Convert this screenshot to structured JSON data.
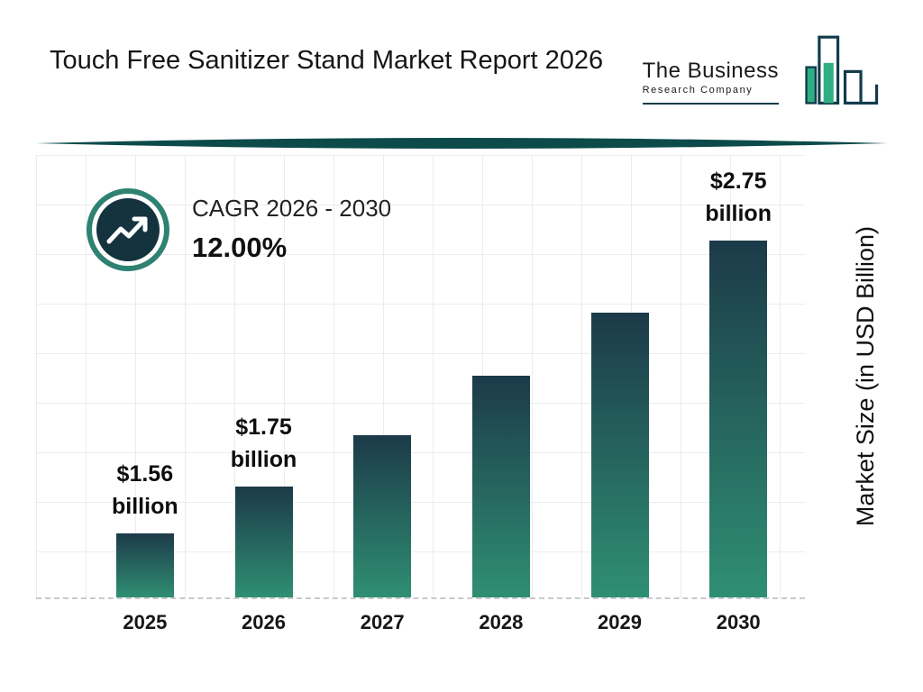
{
  "header": {
    "title": "Touch Free Sanitizer Stand Market Report 2026",
    "logo": {
      "line1": "The Business",
      "line2": "Research Company"
    }
  },
  "cagr": {
    "label": "CAGR 2026 - 2030",
    "value": "12.00%"
  },
  "chart_data": {
    "type": "bar",
    "title": "Touch Free Sanitizer Stand Market Report 2026",
    "categories": [
      "2025",
      "2026",
      "2027",
      "2028",
      "2029",
      "2030"
    ],
    "values": [
      1.56,
      1.75,
      1.96,
      2.2,
      2.46,
      2.75
    ],
    "annotations": [
      {
        "line1": "$1.56",
        "line2": "billion"
      },
      {
        "line1": "$1.75",
        "line2": "billion"
      },
      null,
      null,
      null,
      {
        "line1": "$2.75",
        "line2": "billion"
      }
    ],
    "xlabel": "",
    "ylabel": "Market Size (in USD Billion)",
    "ylim": [
      1.3,
      3.1
    ],
    "grid": true,
    "legend": "none",
    "colors": {
      "bar_top": "#1c3a49",
      "bar_bottom": "#2f8f73",
      "accent_teal": "#2e8272",
      "badge_fill": "#14333e",
      "divider": "#0d4a4a",
      "logo_green": "#2fae85",
      "logo_outline": "#123c4c"
    }
  }
}
